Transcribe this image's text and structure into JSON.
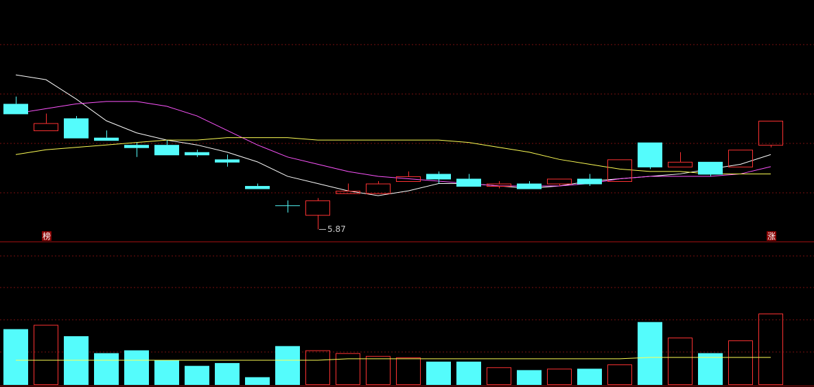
{
  "chart_data": [
    {
      "type": "candlestick",
      "categories": [
        null,
        null,
        null,
        null,
        null,
        null,
        null,
        null,
        null,
        null,
        null,
        null,
        null,
        null,
        null,
        null,
        null,
        null,
        null,
        null,
        null,
        null,
        null,
        null,
        null,
        null
      ],
      "open": [
        6.39,
        6.28,
        6.33,
        6.25,
        6.22,
        6.22,
        6.19,
        6.16,
        6.05,
        5.97,
        5.93,
        6.02,
        6.02,
        6.07,
        6.1,
        6.08,
        6.05,
        6.06,
        6.06,
        6.08,
        6.07,
        6.23,
        6.13,
        6.15,
        6.13,
        6.22
      ],
      "high": [
        6.42,
        6.35,
        6.34,
        6.28,
        6.23,
        6.24,
        6.2,
        6.18,
        6.06,
        5.99,
        6.0,
        6.06,
        6.07,
        6.11,
        6.11,
        6.1,
        6.07,
        6.07,
        6.08,
        6.1,
        6.16,
        6.23,
        6.19,
        6.15,
        6.2,
        6.32
      ],
      "low": [
        6.35,
        6.28,
        6.25,
        6.24,
        6.17,
        6.18,
        6.17,
        6.13,
        6.04,
        5.94,
        5.87,
        6.02,
        6.02,
        6.07,
        6.06,
        6.05,
        6.04,
        6.04,
        6.05,
        6.05,
        6.07,
        6.12,
        6.13,
        6.09,
        6.13,
        6.21
      ],
      "close": [
        6.35,
        6.31,
        6.25,
        6.24,
        6.21,
        6.18,
        6.18,
        6.15,
        6.04,
        5.97,
        5.99,
        6.03,
        6.06,
        6.09,
        6.08,
        6.05,
        6.06,
        6.04,
        6.08,
        6.06,
        6.16,
        6.13,
        6.15,
        6.1,
        6.2,
        6.32
      ],
      "up_color": "#ff3232",
      "down_color": "#54fcfc",
      "series": [
        {
          "color": "#ffffff",
          "values": [
            6.51,
            6.49,
            6.41,
            6.32,
            6.27,
            6.24,
            6.22,
            6.19,
            6.15,
            6.09,
            6.06,
            6.03,
            6.01,
            6.03,
            6.06,
            6.06,
            6.05,
            6.04,
            6.05,
            6.07,
            6.08,
            6.09,
            6.1,
            6.12,
            6.14,
            6.18
          ]
        },
        {
          "color": "#ff55ff",
          "values": [
            6.35,
            6.37,
            6.39,
            6.4,
            6.4,
            6.38,
            6.34,
            6.28,
            6.22,
            6.17,
            6.14,
            6.11,
            6.09,
            6.08,
            6.07,
            6.06,
            6.05,
            6.05,
            6.05,
            6.06,
            6.08,
            6.09,
            6.09,
            6.09,
            6.1,
            6.13
          ]
        },
        {
          "color": "#ffff55",
          "values": [
            6.18,
            6.2,
            6.21,
            6.22,
            6.23,
            6.24,
            6.24,
            6.25,
            6.25,
            6.25,
            6.24,
            6.24,
            6.24,
            6.24,
            6.24,
            6.23,
            6.21,
            6.19,
            6.16,
            6.14,
            6.12,
            6.11,
            6.11,
            6.1,
            6.1,
            6.1
          ]
        }
      ],
      "ylim": [
        5.82,
        6.82
      ],
      "markers": [
        "榜",
        "涨"
      ]
    },
    {
      "type": "bar",
      "values": [
        39,
        42,
        34,
        22,
        24,
        17,
        13,
        15,
        5,
        27,
        24,
        22,
        20,
        19,
        16,
        16,
        12,
        10,
        11,
        11,
        14,
        44,
        33,
        22,
        31,
        50
      ],
      "series": [
        {
          "color": "#ffff55",
          "values": [
            17,
            17,
            17,
            17,
            17,
            17,
            17,
            17,
            17,
            17,
            17,
            18,
            18,
            18,
            18,
            18,
            18,
            18,
            18,
            18,
            18,
            19,
            19,
            19,
            19,
            19
          ]
        }
      ],
      "ylim": [
        0,
        100
      ]
    }
  ]
}
